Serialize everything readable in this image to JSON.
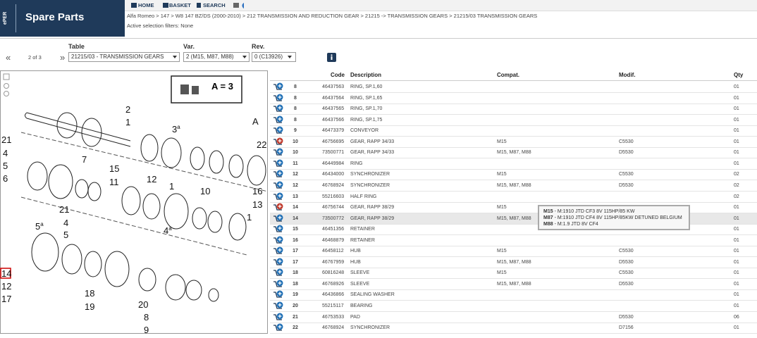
{
  "header": {
    "logo": "ePER",
    "title": "Spare Parts",
    "nav": [
      "HOME",
      "BASKET",
      "SEARCH"
    ],
    "breadcrumb": "Alfa Romeo > 147 > W8 147 BZ/DS (2000-2010) > 212 TRANSMISSION AND REDUCTION GEAR > 21215 -> TRANSMISSION GEARS > 21215/03 TRANSMISSION GEARS",
    "filters": "Active selection filters: None"
  },
  "selector": {
    "prev": "«",
    "page": "2 of 3",
    "next": "»",
    "table_label": "Table",
    "table_value": "21215/03 - TRANSMISSION GEARS",
    "var_label": "Var.",
    "var_value": "2 (M15, M87, M88)",
    "rev_label": "Rev.",
    "rev_value": "0 (C13926)"
  },
  "drawing": {
    "legend": "A = 3",
    "callouts": [
      {
        "text": "2"
      },
      {
        "text": "1"
      },
      {
        "text": "3",
        "sup": "a"
      },
      {
        "text": "A"
      },
      {
        "text": "21"
      },
      {
        "text": "4"
      },
      {
        "text": "22"
      },
      {
        "text": "7"
      },
      {
        "text": "5"
      },
      {
        "text": "15"
      },
      {
        "text": "6"
      },
      {
        "text": "11"
      },
      {
        "text": "12"
      },
      {
        "text": "1"
      },
      {
        "text": "10"
      },
      {
        "text": "16"
      },
      {
        "text": "13"
      },
      {
        "text": "1"
      },
      {
        "text": "21"
      },
      {
        "text": "5",
        "sup": "a"
      },
      {
        "text": "4"
      },
      {
        "text": "5"
      },
      {
        "text": "4",
        "sup": "a"
      },
      {
        "text": "14"
      },
      {
        "text": "12"
      },
      {
        "text": "17"
      },
      {
        "text": "18"
      },
      {
        "text": "19"
      },
      {
        "text": "20"
      },
      {
        "text": "8"
      },
      {
        "text": "9"
      }
    ]
  },
  "table": {
    "columns": [
      "Code",
      "Description",
      "Compat.",
      "Modif.",
      "Qty"
    ],
    "rows": [
      {
        "ref": "8",
        "code": "46437563",
        "desc": "RING, SP.1,60",
        "qty": "01"
      },
      {
        "ref": "8",
        "code": "46437564",
        "desc": "RING, SP.1,65",
        "qty": "01"
      },
      {
        "ref": "8",
        "code": "46437565",
        "desc": "RING, SP.1,70",
        "qty": "01"
      },
      {
        "ref": "8",
        "code": "46437566",
        "desc": "RING, SP.1,75",
        "qty": "01"
      },
      {
        "ref": "9",
        "code": "46473379",
        "desc": "CONVEYOR",
        "qty": "01"
      },
      {
        "ref": "10",
        "code": "46756695",
        "desc": "GEAR, RAPP 34/33",
        "compat": "M15",
        "modif": "C5530",
        "qty": "01",
        "flag": true
      },
      {
        "ref": "10",
        "code": "73500771",
        "desc": "GEAR, RAPP 34/33",
        "compat": "M15, M87, M88",
        "modif": "D5530",
        "qty": "01"
      },
      {
        "ref": "11",
        "code": "46449984",
        "desc": "RING",
        "qty": "01"
      },
      {
        "ref": "12",
        "code": "46434000",
        "desc": "SYNCHRONIZER",
        "compat": "M15",
        "modif": "C5530",
        "qty": "02"
      },
      {
        "ref": "12",
        "code": "46768924",
        "desc": "SYNCHRONIZER",
        "compat": "M15, M87, M88",
        "modif": "D5530",
        "qty": "02"
      },
      {
        "ref": "13",
        "code": "55216603",
        "desc": "HALF RING",
        "qty": "02"
      },
      {
        "ref": "14",
        "code": "46756744",
        "desc": "GEAR, RAPP 38/29",
        "compat": "M15",
        "qty": "01",
        "flag": true
      },
      {
        "ref": "14",
        "code": "73500772",
        "desc": "GEAR, RAPP 38/29",
        "compat": "M15, M87, M88",
        "qty": "01",
        "hover": true
      },
      {
        "ref": "15",
        "code": "46451356",
        "desc": "RETAINER",
        "qty": "01"
      },
      {
        "ref": "16",
        "code": "46468879",
        "desc": "RETAINER",
        "qty": "01"
      },
      {
        "ref": "17",
        "code": "46458112",
        "desc": "HUB",
        "compat": "M15",
        "modif": "C5530",
        "qty": "01"
      },
      {
        "ref": "17",
        "code": "46767959",
        "desc": "HUB",
        "compat": "M15, M87, M88",
        "modif": "D5530",
        "qty": "01"
      },
      {
        "ref": "18",
        "code": "60816248",
        "desc": "SLEEVE",
        "compat": "M15",
        "modif": "C5530",
        "qty": "01"
      },
      {
        "ref": "18",
        "code": "46768926",
        "desc": "SLEEVE",
        "compat": "M15, M87, M88",
        "modif": "D5530",
        "qty": "01"
      },
      {
        "ref": "19",
        "code": "46436866",
        "desc": "SEALING WASHER",
        "qty": "01"
      },
      {
        "ref": "20",
        "code": "55215117",
        "desc": "BEARING",
        "qty": "01"
      },
      {
        "ref": "21",
        "code": "46753533",
        "desc": "PAD",
        "modif": "D5530",
        "qty": "06"
      },
      {
        "ref": "22",
        "code": "46768924",
        "desc": "SYNCHRONIZER",
        "modif": "D7156",
        "qty": "01"
      }
    ]
  },
  "tooltip": [
    {
      "code": "M15",
      "text": " - M:1910 JTD CF3 8V 115HP/85 KW"
    },
    {
      "code": "M87",
      "text": " - M:1910 JTD CF4 8V 115HP/85KW DETUNED BELGIUM"
    },
    {
      "code": "M88",
      "text": " - M:1.9 JTD 8V CF4"
    }
  ]
}
